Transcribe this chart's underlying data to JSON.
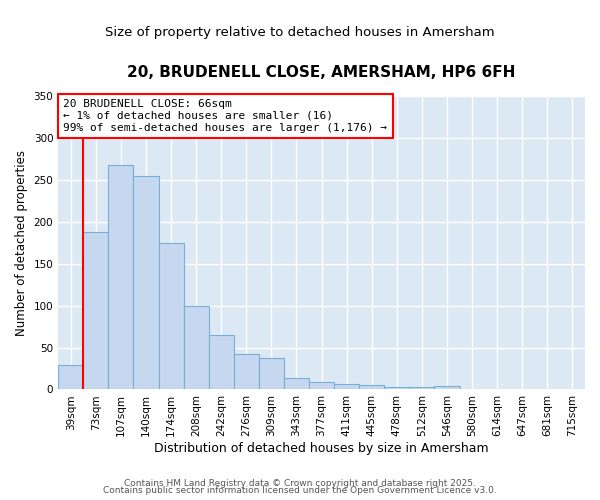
{
  "title": "20, BRUDENELL CLOSE, AMERSHAM, HP6 6FH",
  "subtitle": "Size of property relative to detached houses in Amersham",
  "xlabel": "Distribution of detached houses by size in Amersham",
  "ylabel": "Number of detached properties",
  "bar_labels": [
    "39sqm",
    "73sqm",
    "107sqm",
    "140sqm",
    "174sqm",
    "208sqm",
    "242sqm",
    "276sqm",
    "309sqm",
    "343sqm",
    "377sqm",
    "411sqm",
    "445sqm",
    "478sqm",
    "512sqm",
    "546sqm",
    "580sqm",
    "614sqm",
    "647sqm",
    "681sqm",
    "715sqm"
  ],
  "bar_values": [
    29,
    188,
    268,
    255,
    175,
    100,
    65,
    42,
    38,
    14,
    9,
    7,
    5,
    3,
    3,
    4,
    1,
    0,
    1,
    1,
    1
  ],
  "bar_color": "#c5d8ef",
  "bar_edge_color": "#7aafd4",
  "axes_bg_color": "#dce9f5",
  "fig_bg_color": "#ffffff",
  "grid_color": "#ffffff",
  "ylim": [
    0,
    350
  ],
  "yticks": [
    0,
    50,
    100,
    150,
    200,
    250,
    300,
    350
  ],
  "annotation_title": "20 BRUDENELL CLOSE: 66sqm",
  "annotation_line1": "← 1% of detached houses are smaller (16)",
  "annotation_line2": "99% of semi-detached houses are larger (1,176) →",
  "footer1": "Contains HM Land Registry data © Crown copyright and database right 2025.",
  "footer2": "Contains public sector information licensed under the Open Government Licence v3.0.",
  "title_fontsize": 11,
  "subtitle_fontsize": 9.5,
  "xlabel_fontsize": 9,
  "ylabel_fontsize": 8.5,
  "tick_fontsize": 7.5,
  "annotation_fontsize": 8,
  "footer_fontsize": 6.5
}
